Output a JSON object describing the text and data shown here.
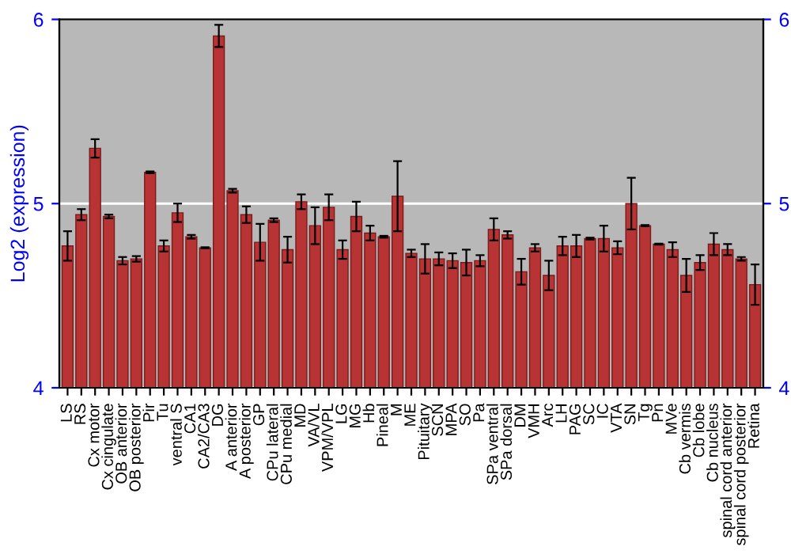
{
  "chart_data": {
    "type": "bar",
    "ylabel": "Log2 (expression)",
    "categories": [
      "LS",
      "RS",
      "Cx motor",
      "Cx cingulate",
      "OB anterior",
      "OB posterior",
      "Pir",
      "Tu",
      "ventral S",
      "CA1",
      "CA2/CA3",
      "DG",
      "A anterior",
      "A posterior",
      "GP",
      "CPu lateral",
      "CPu medial",
      "MD",
      "VA/VL",
      "VPM/VPL",
      "LG",
      "MG",
      "Hb",
      "Pineal",
      "M",
      "ME",
      "Pituitary",
      "SCN",
      "MPA",
      "SO",
      "Pa",
      "SPa ventral",
      "SPa dorsal",
      "DM",
      "VMH",
      "Arc",
      "LH",
      "PAG",
      "SC",
      "IC",
      "VTA",
      "SN",
      "Tg",
      "Pn",
      "MVe",
      "Cb vermis",
      "Cb lobe",
      "Cb nucleus",
      "spinal cord anterior",
      "spinal cord posterior",
      "Retina"
    ],
    "values": [
      4.77,
      4.94,
      5.3,
      4.93,
      4.69,
      4.7,
      5.17,
      4.77,
      4.95,
      4.82,
      4.76,
      5.91,
      5.07,
      4.94,
      4.79,
      4.91,
      4.75,
      5.01,
      4.88,
      4.98,
      4.75,
      4.93,
      4.84,
      4.82,
      5.04,
      4.73,
      4.7,
      4.7,
      4.69,
      4.68,
      4.69,
      4.86,
      4.83,
      4.63,
      4.76,
      4.61,
      4.77,
      4.77,
      4.81,
      4.81,
      4.76,
      5.0,
      4.88,
      4.78,
      4.75,
      4.61,
      4.68,
      4.78,
      4.75,
      4.7,
      4.56
    ],
    "errors": [
      0.08,
      0.03,
      0.05,
      0.01,
      0.02,
      0.015,
      0.005,
      0.03,
      0.05,
      0.01,
      0.003,
      0.06,
      0.01,
      0.045,
      0.1,
      0.01,
      0.07,
      0.04,
      0.1,
      0.07,
      0.05,
      0.08,
      0.04,
      0.005,
      0.19,
      0.02,
      0.08,
      0.035,
      0.04,
      0.07,
      0.03,
      0.06,
      0.02,
      0.07,
      0.02,
      0.08,
      0.05,
      0.06,
      0.005,
      0.07,
      0.035,
      0.14,
      0.003,
      0.003,
      0.04,
      0.09,
      0.04,
      0.06,
      0.03,
      0.01,
      0.11
    ],
    "color": "#b83333",
    "ylim": [
      4,
      6
    ],
    "yticks": [
      4,
      5,
      6
    ],
    "y2lim": [
      4,
      6
    ],
    "y2ticks": [
      4,
      5,
      6
    ],
    "grid": "y"
  }
}
